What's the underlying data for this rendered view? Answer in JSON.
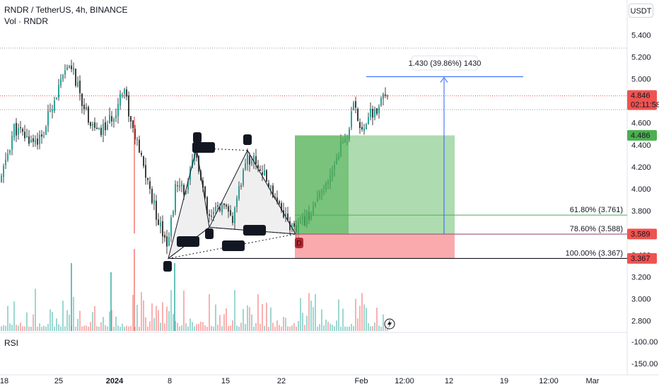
{
  "header": {
    "title": "RNDR / TetherUS, 4h, BINANCE",
    "volume_label": "Vol · RNDR",
    "currency": "USDT",
    "rsi_label": "RSI"
  },
  "colors": {
    "up": "#26a69a",
    "down": "#ef5350",
    "candle": "#3d3d3d",
    "profit_zone": "#4caf50",
    "loss_zone": "#f77c80",
    "measure": "#2962ff",
    "fib_618": "#4caf50",
    "fib_786": "#ff5722",
    "fib_100": "#131722"
  },
  "chart_data": {
    "type": "candlestick",
    "symbol": "RNDR / TetherUS",
    "timeframe": "4h",
    "exchange": "BINANCE",
    "y_axis": {
      "ticks": [
        "5.400",
        "5.200",
        "5.000",
        "4.800",
        "4.600",
        "4.400",
        "4.200",
        "4.000",
        "3.800",
        "3.600",
        "3.400",
        "3.200",
        "3.000",
        "2.800"
      ],
      "range": [
        2.75,
        5.5
      ]
    },
    "x_axis": {
      "ticks": [
        "18",
        "25",
        "2024",
        "8",
        "15",
        "22",
        "Feb",
        "12:00",
        "12",
        "19",
        "12:00",
        "Mar"
      ]
    },
    "rsi_axis": {
      "ticks": [
        "-100.00",
        "-150.00"
      ]
    },
    "price_labels": {
      "last": "4.846",
      "countdown": "02:11:58",
      "target": "4.486",
      "entry": "3.589",
      "stop": "3.367"
    },
    "harmonic_pattern": {
      "points": [
        {
          "label": "X",
          "price": 3.367
        },
        {
          "label": "A",
          "price": 4.37
        },
        {
          "label": "B",
          "price": 3.65
        },
        {
          "label": "C",
          "price": 4.35
        },
        {
          "label": "D",
          "price": 3.589
        }
      ],
      "ratios": [
        "0.971",
        "0.707",
        "1.115",
        "0.786"
      ]
    },
    "fib_levels": [
      {
        "label": "61.80% (3.761)",
        "ratio": 0.618,
        "price": 3.761
      },
      {
        "label": "78.60% (3.588)",
        "ratio": 0.786,
        "price": 3.588
      },
      {
        "label": "100.00% (3.367)",
        "ratio": 1.0,
        "price": 3.367
      }
    ],
    "position": {
      "entry": 3.589,
      "target": 4.486,
      "stop": 3.367
    },
    "measure_label": "1.430 (39.86%) 1430"
  }
}
